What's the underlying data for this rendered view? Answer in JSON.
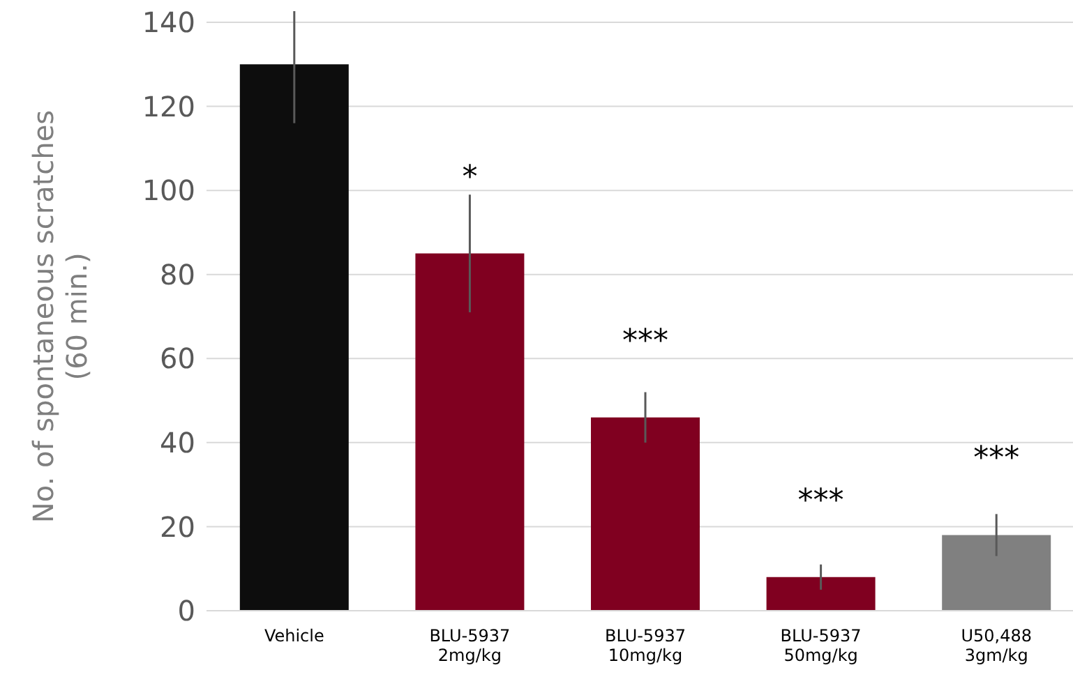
{
  "chart_data": {
    "type": "bar",
    "ylabel": "No. of spontaneous scratches\n(60 min.)",
    "categories": [
      "Vehicle",
      "BLU-5937\n2mg/kg",
      "BLU-5937\n10mg/kg",
      "BLU-5937\n50mg/kg",
      "U50,488\n3gm/kg"
    ],
    "values": [
      130,
      85,
      46,
      8,
      18
    ],
    "colors": [
      "#0d0d0d",
      "#800020",
      "#800020",
      "#800020",
      "#808080"
    ],
    "errors": [
      14,
      14,
      6,
      3,
      5
    ],
    "value_labels": [
      null,
      "*",
      "***",
      "***",
      "***"
    ],
    "ylim": [
      0,
      140
    ],
    "yticks": [
      0,
      20,
      40,
      60,
      80,
      100,
      120,
      140
    ],
    "grid": "y",
    "legend": false
  }
}
